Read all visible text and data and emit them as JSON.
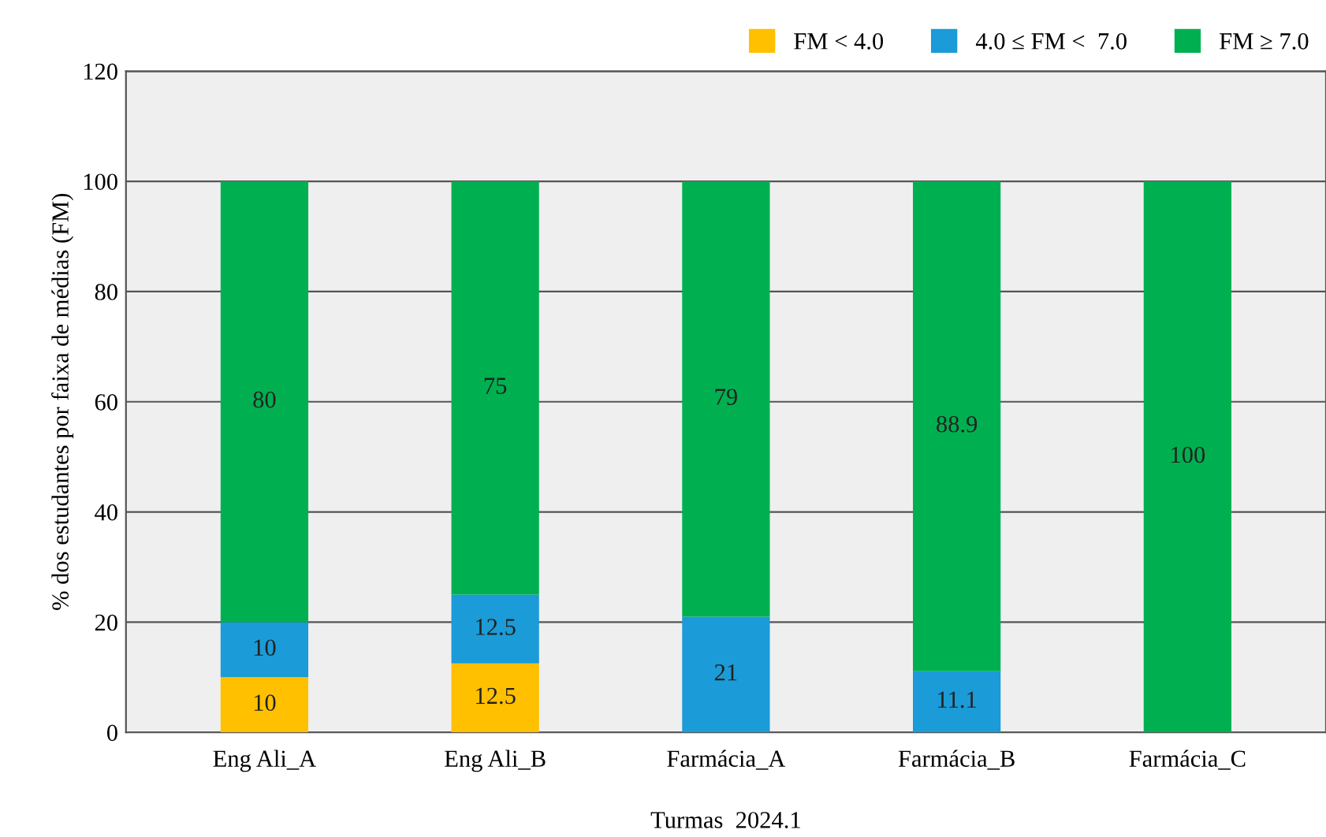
{
  "chart_data": {
    "type": "bar",
    "stacked": true,
    "xlabel": "Turmas  2024.1",
    "ylabel": "% dos estudantes por faixa de médias (FM)",
    "categories": [
      "Eng Ali_A",
      "Eng Ali_B",
      "Farmácia_A",
      "Farmácia_B",
      "Farmácia_C"
    ],
    "series": [
      {
        "name": "FM < 4.0",
        "color": "#ffc000",
        "values": [
          10,
          12.5,
          0,
          0,
          0
        ],
        "value_labels": [
          "10",
          "12.5",
          null,
          null,
          null
        ]
      },
      {
        "name": "4.0 ≤ FM <  7.0",
        "color": "#1b9bd7",
        "values": [
          10,
          12.5,
          21,
          11.1,
          0
        ],
        "value_labels": [
          "10",
          "12.5",
          "21",
          "11.1",
          null
        ]
      },
      {
        "name": "FM ≥ 7.0",
        "color": "#00b050",
        "values": [
          80,
          75,
          79,
          88.9,
          100
        ],
        "value_labels": [
          "80",
          "75",
          "79",
          "88.9",
          "100"
        ]
      }
    ],
    "ylim": [
      0,
      120
    ],
    "yticks": [
      0,
      20,
      40,
      60,
      80,
      100,
      120
    ],
    "grid": "y",
    "legend": "top right"
  }
}
